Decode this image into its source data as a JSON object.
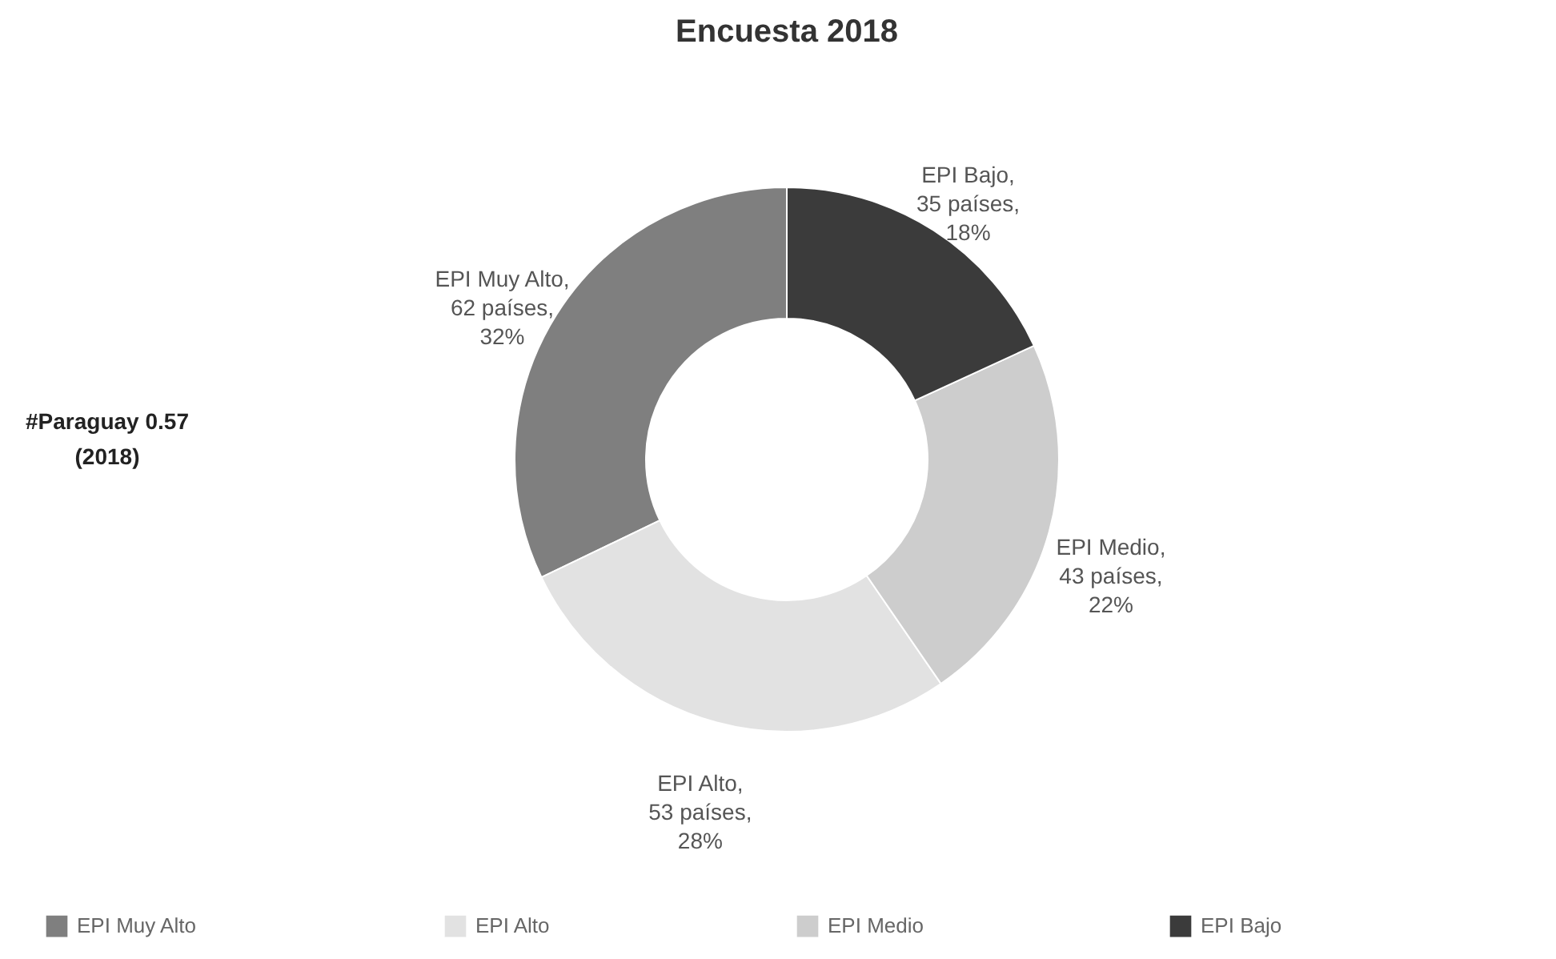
{
  "chart_data": {
    "type": "donut",
    "title": "Encuesta 2018",
    "categories": [
      "EPI Muy Alto",
      "EPI Alto",
      "EPI Medio",
      "EPI Bajo"
    ],
    "values": [
      62,
      53,
      43,
      35
    ],
    "colors": [
      "#7f7f7f",
      "#e2e2e2",
      "#cdcdcd",
      "#3b3b3b"
    ],
    "value_labels": [
      "EPI Muy Alto, 62 países, 32%",
      "EPI Alto, 53 países, 28%",
      "EPI Medio, 43 países, 22%",
      "EPI Bajo, 35 países, 18%"
    ],
    "annotations": [
      "#Paraguay 0.57 (2018)"
    ],
    "legend": "bottom"
  }
}
